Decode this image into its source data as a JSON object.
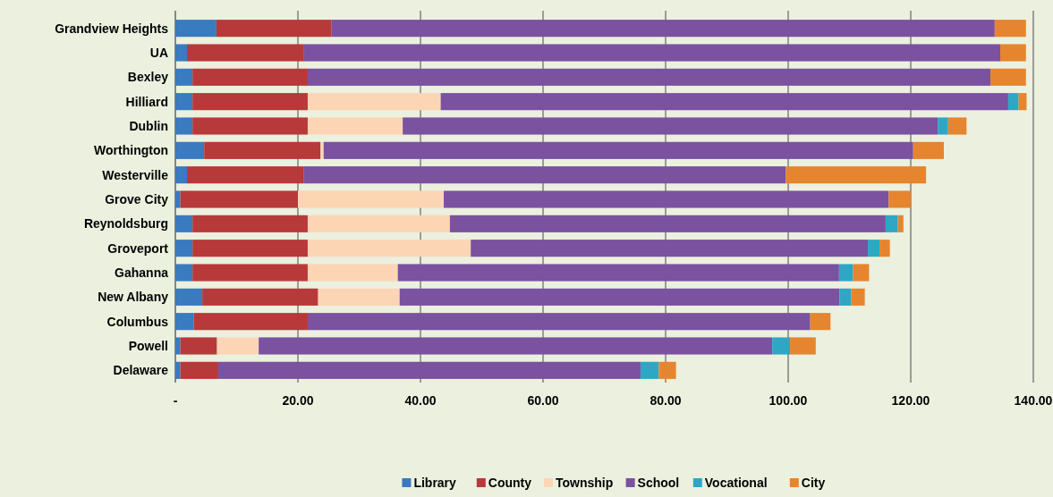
{
  "chart_data": {
    "type": "bar",
    "orientation": "horizontal",
    "stacked": true,
    "categories": [
      "Grandview Heights",
      "UA",
      "Bexley",
      "Hilliard",
      "Dublin",
      "Worthington",
      "Westerville",
      "Grove City",
      "Reynoldsburg",
      "Groveport",
      "Gahanna",
      "New Albany",
      "Columbus",
      "Powell",
      "Delaware"
    ],
    "series": [
      {
        "name": "Library",
        "color": "#3a7abf",
        "values": [
          6.7,
          1.9,
          2.8,
          2.8,
          2.8,
          4.7,
          1.9,
          0.8,
          2.8,
          2.8,
          2.8,
          4.4,
          3.0,
          0.8,
          0.8
        ]
      },
      {
        "name": "County",
        "color": "#b8393a",
        "values": [
          18.8,
          19.1,
          18.8,
          18.8,
          18.8,
          19.0,
          19.0,
          19.2,
          18.8,
          18.8,
          18.8,
          18.9,
          18.6,
          6.0,
          6.2
        ]
      },
      {
        "name": "Township",
        "color": "#fcd5b5",
        "values": [
          0,
          0,
          0,
          21.7,
          15.5,
          0.5,
          0,
          23.8,
          23.2,
          26.6,
          14.7,
          13.3,
          0,
          6.8,
          0
        ]
      },
      {
        "name": "School",
        "color": "#7a52a0",
        "values": [
          108.2,
          113.6,
          111.4,
          92.6,
          87.3,
          96.2,
          78.7,
          72.6,
          71.1,
          64.8,
          72.0,
          71.8,
          82.0,
          83.8,
          68.9
        ]
      },
      {
        "name": "Vocational",
        "color": "#2fa6c4",
        "values": [
          0,
          0,
          0,
          1.7,
          1.7,
          0,
          0,
          0,
          2.0,
          1.9,
          2.3,
          1.9,
          0,
          2.9,
          3.0
        ]
      },
      {
        "name": "City",
        "color": "#e6852f",
        "values": [
          5.1,
          4.2,
          5.8,
          1.3,
          3.0,
          5.0,
          22.9,
          3.6,
          0.9,
          1.7,
          2.6,
          2.2,
          3.3,
          4.2,
          2.8
        ]
      }
    ],
    "xlim": [
      0,
      140
    ],
    "xticks": [
      {
        "value": 0,
        "label": "-"
      },
      {
        "value": 20,
        "label": "20.00"
      },
      {
        "value": 40,
        "label": "40.00"
      },
      {
        "value": 60,
        "label": "60.00"
      },
      {
        "value": 80,
        "label": "80.00"
      },
      {
        "value": 100,
        "label": "100.00"
      },
      {
        "value": 120,
        "label": "120.00"
      },
      {
        "value": 140,
        "label": "140.00"
      }
    ],
    "grid": "x",
    "legend": "bottom"
  }
}
